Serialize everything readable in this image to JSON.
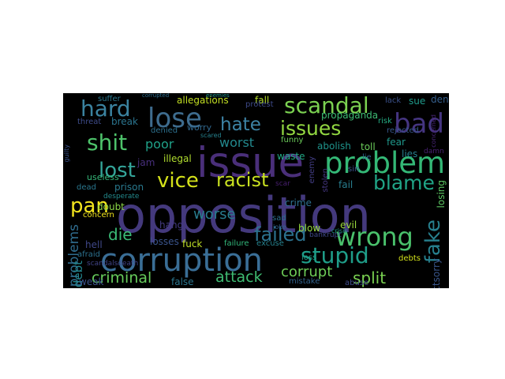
{
  "word_cloud": {
    "background": "#000000",
    "words": [
      {
        "key": "opposition",
        "text": "opposition",
        "color": "#44397d",
        "orientation": "horizontal"
      },
      {
        "key": "issue",
        "text": "issue",
        "color": "#4a2f7a",
        "orientation": "horizontal"
      },
      {
        "key": "corruption",
        "text": "corruption",
        "color": "#3a6e96",
        "orientation": "horizontal"
      },
      {
        "key": "problem",
        "text": "problem",
        "color": "#34b876",
        "orientation": "horizontal"
      },
      {
        "key": "wrong",
        "text": "wrong",
        "color": "#4ac16c",
        "orientation": "horizontal"
      },
      {
        "key": "bad",
        "text": "bad",
        "color": "#453581",
        "orientation": "horizontal"
      },
      {
        "key": "lose",
        "text": "lose",
        "color": "#3e6c8e",
        "orientation": "horizontal"
      },
      {
        "key": "scandal",
        "text": "scandal",
        "color": "#7bd151",
        "orientation": "horizontal"
      },
      {
        "key": "issues",
        "text": "issues",
        "color": "#92d741",
        "orientation": "horizontal"
      },
      {
        "key": "hard",
        "text": "hard",
        "color": "#3b83a0",
        "orientation": "horizontal"
      },
      {
        "key": "hate",
        "text": "hate",
        "color": "#3d83a5",
        "orientation": "horizontal"
      },
      {
        "key": "shit",
        "text": "shit",
        "color": "#4ec36b",
        "orientation": "horizontal"
      },
      {
        "key": "lost",
        "text": "lost",
        "color": "#34a59a",
        "orientation": "horizontal"
      },
      {
        "key": "vice",
        "text": "vice",
        "color": "#d5e21a",
        "orientation": "horizontal"
      },
      {
        "key": "racist",
        "text": "racist",
        "color": "#c8e020",
        "orientation": "horizontal"
      },
      {
        "key": "blame",
        "text": "blame",
        "color": "#20a486",
        "orientation": "horizontal"
      },
      {
        "key": "fake",
        "text": "fake",
        "color": "#27808e",
        "orientation": "vertical"
      },
      {
        "key": "pan",
        "text": "pan",
        "color": "#f3e51e",
        "orientation": "horizontal"
      },
      {
        "key": "stupid",
        "text": "stupid",
        "color": "#1f9e89",
        "orientation": "horizontal"
      },
      {
        "key": "failed",
        "text": "failed",
        "color": "#2c728e",
        "orientation": "horizontal"
      },
      {
        "key": "die",
        "text": "die",
        "color": "#3aba76",
        "orientation": "horizontal"
      },
      {
        "key": "worse",
        "text": "worse",
        "color": "#287c8e",
        "orientation": "horizontal"
      },
      {
        "key": "attack",
        "text": "attack",
        "color": "#3fbc73",
        "orientation": "horizontal"
      },
      {
        "key": "criminal",
        "text": "criminal",
        "color": "#67cc5c",
        "orientation": "horizontal"
      },
      {
        "key": "corrupt",
        "text": "corrupt",
        "color": "#6ece58",
        "orientation": "horizontal"
      },
      {
        "key": "split",
        "text": "split",
        "color": "#7ad151",
        "orientation": "horizontal"
      },
      {
        "key": "problems",
        "text": "problems",
        "color": "#2f6c8e",
        "orientation": "vertical"
      },
      {
        "key": "worst",
        "text": "worst",
        "color": "#23898e",
        "orientation": "horizontal"
      },
      {
        "key": "poor",
        "text": "poor",
        "color": "#1fa188",
        "orientation": "horizontal"
      },
      {
        "key": "allegations",
        "text": "allegations",
        "color": "#c2df23",
        "orientation": "horizontal"
      },
      {
        "key": "fall",
        "text": "fall",
        "color": "#b5de2b",
        "orientation": "horizontal"
      },
      {
        "key": "debt",
        "text": "debt",
        "color": "#24868e",
        "orientation": "vertical"
      },
      {
        "key": "rejectsorry",
        "text": "rejectsorry",
        "color": "#39568c",
        "orientation": "vertical"
      },
      {
        "key": "losing",
        "text": "losing",
        "color": "#5dc863",
        "orientation": "vertical"
      },
      {
        "key": "suffer",
        "text": "suffer",
        "color": "#2a788e",
        "orientation": "horizontal"
      },
      {
        "key": "corrupted",
        "text": "corrupted",
        "color": "#2e6e8e",
        "orientation": "horizontal"
      },
      {
        "key": "enemies",
        "text": "enemies",
        "color": "#20928c",
        "orientation": "horizontal"
      },
      {
        "key": "protest",
        "text": "protest",
        "color": "#3e4a89",
        "orientation": "horizontal"
      },
      {
        "key": "lack",
        "text": "lack",
        "color": "#3b518b",
        "orientation": "horizontal"
      },
      {
        "key": "sue",
        "text": "sue",
        "color": "#1f9a8a",
        "orientation": "horizontal"
      },
      {
        "key": "deny",
        "text": "deny",
        "color": "#355f8d",
        "orientation": "horizontal"
      },
      {
        "key": "threat",
        "text": "threat",
        "color": "#3e4c8a",
        "orientation": "horizontal"
      },
      {
        "key": "break",
        "text": "break",
        "color": "#2b758e",
        "orientation": "horizontal"
      },
      {
        "key": "worry",
        "text": "worry",
        "color": "#31688e",
        "orientation": "horizontal"
      },
      {
        "key": "propaganda",
        "text": "propaganda",
        "color": "#3dbc74",
        "orientation": "horizontal"
      },
      {
        "key": "risk",
        "text": "risk",
        "color": "#25ab82",
        "orientation": "horizontal"
      },
      {
        "key": "rejected",
        "text": "rejected",
        "color": "#38588c",
        "orientation": "horizontal"
      },
      {
        "key": "concerned",
        "text": "concerned",
        "color": "#482475",
        "orientation": "vertical"
      },
      {
        "key": "guilty",
        "text": "guilty",
        "color": "#3b528b",
        "orientation": "vertical"
      },
      {
        "key": "denied",
        "text": "denied",
        "color": "#2d708e",
        "orientation": "horizontal"
      },
      {
        "key": "scared",
        "text": "scared",
        "color": "#26828e",
        "orientation": "horizontal"
      },
      {
        "key": "funny",
        "text": "funny",
        "color": "#6ccd5a",
        "orientation": "horizontal"
      },
      {
        "key": "waste",
        "text": "waste",
        "color": "#22a884",
        "orientation": "horizontal"
      },
      {
        "key": "abolish",
        "text": "abolish",
        "color": "#1f948c",
        "orientation": "horizontal"
      },
      {
        "key": "toll",
        "text": "toll",
        "color": "#6ccd5a",
        "orientation": "horizontal"
      },
      {
        "key": "fear",
        "text": "fear",
        "color": "#1f988b",
        "orientation": "horizontal"
      },
      {
        "key": "lies",
        "text": "lies",
        "color": "#277f8e",
        "orientation": "horizontal"
      },
      {
        "key": "damn",
        "text": "damn",
        "color": "#482071",
        "orientation": "horizontal"
      },
      {
        "key": "jam",
        "text": "jam",
        "color": "#472f7d",
        "orientation": "horizontal"
      },
      {
        "key": "useless",
        "text": "useless",
        "color": "#35b779",
        "orientation": "horizontal"
      },
      {
        "key": "illegal",
        "text": "illegal",
        "color": "#b0dd2f",
        "orientation": "horizontal"
      },
      {
        "key": "lie",
        "text": "lie",
        "color": "#32658e",
        "orientation": "horizontal"
      },
      {
        "key": "enemy",
        "text": "enemy",
        "color": "#433e85",
        "orientation": "vertical"
      },
      {
        "key": "sin",
        "text": "sin",
        "color": "#3b518b",
        "orientation": "horizontal"
      },
      {
        "key": "dead",
        "text": "dead",
        "color": "#2a778e",
        "orientation": "horizontal"
      },
      {
        "key": "prison",
        "text": "prison",
        "color": "#29798e",
        "orientation": "horizontal"
      },
      {
        "key": "fail",
        "text": "fail",
        "color": "#287d8e",
        "orientation": "horizontal"
      },
      {
        "key": "crime",
        "text": "crime",
        "color": "#2d708e",
        "orientation": "horizontal"
      },
      {
        "key": "stolen",
        "text": "stolen",
        "color": "#453781",
        "orientation": "vertical"
      },
      {
        "key": "scar",
        "text": "scar",
        "color": "#481f70",
        "orientation": "horizontal"
      },
      {
        "key": "desperate",
        "text": "desperate",
        "color": "#238a8d",
        "orientation": "horizontal"
      },
      {
        "key": "doubt",
        "text": "doubt",
        "color": "#8bd646",
        "orientation": "horizontal"
      },
      {
        "key": "concern",
        "text": "concern",
        "color": "#f1e51d",
        "orientation": "horizontal"
      },
      {
        "key": "sad",
        "text": "sad",
        "color": "#2d708e",
        "orientation": "horizontal"
      },
      {
        "key": "evil",
        "text": "evil",
        "color": "#9bd93c",
        "orientation": "horizontal"
      },
      {
        "key": "blow",
        "text": "blow",
        "color": "#95d840",
        "orientation": "horizontal"
      },
      {
        "key": "joke",
        "text": "joke",
        "color": "#33628d",
        "orientation": "horizontal"
      },
      {
        "key": "crisis",
        "text": "crisis",
        "color": "#1f9a8a",
        "orientation": "horizontal"
      },
      {
        "key": "hang",
        "text": "hang",
        "color": "#443b84",
        "orientation": "horizontal"
      },
      {
        "key": "hell",
        "text": "hell",
        "color": "#3f4788",
        "orientation": "horizontal"
      },
      {
        "key": "afraid",
        "text": "afraid",
        "color": "#2c718e",
        "orientation": "horizontal"
      },
      {
        "key": "fuck",
        "text": "fuck",
        "color": "#c0df25",
        "orientation": "horizontal"
      },
      {
        "key": "losses",
        "text": "losses",
        "color": "#3a548c",
        "orientation": "horizontal"
      },
      {
        "key": "failure",
        "text": "failure",
        "color": "#32b67a",
        "orientation": "horizontal"
      },
      {
        "key": "excuse",
        "text": "excuse",
        "color": "#26828e",
        "orientation": "horizontal"
      },
      {
        "key": "bankrupt",
        "text": "bankrupt",
        "color": "#3e4989",
        "orientation": "horizontal"
      },
      {
        "key": "scandalsdeath",
        "text": "scandalsdeath",
        "color": "#414487",
        "orientation": "horizontal"
      },
      {
        "key": "loss",
        "text": "loss",
        "color": "#1f9f88",
        "orientation": "horizontal"
      },
      {
        "key": "debts",
        "text": "debts",
        "color": "#d2e21b",
        "orientation": "horizontal"
      },
      {
        "key": "weak",
        "text": "weak",
        "color": "#3b518b",
        "orientation": "horizontal"
      },
      {
        "key": "false",
        "text": "false",
        "color": "#2b758e",
        "orientation": "horizontal"
      },
      {
        "key": "mistake",
        "text": "mistake",
        "color": "#33628d",
        "orientation": "horizontal"
      },
      {
        "key": "abuse",
        "text": "abuse",
        "color": "#3e4a89",
        "orientation": "horizontal"
      }
    ]
  }
}
